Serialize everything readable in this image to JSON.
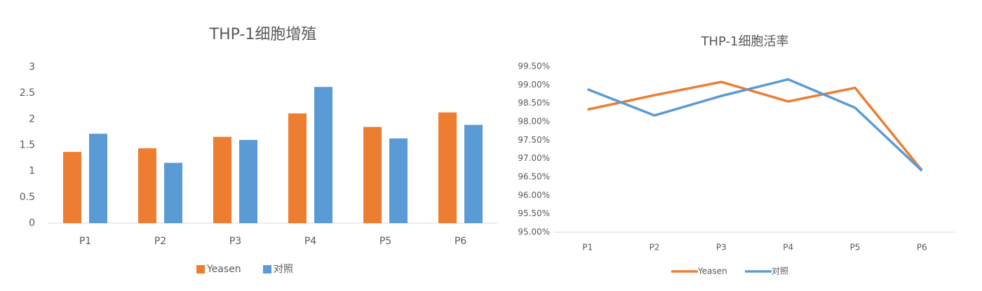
{
  "chart_data": [
    {
      "type": "bar",
      "title": "THP-1细胞增殖",
      "categories": [
        "P1",
        "P2",
        "P3",
        "P4",
        "P5",
        "P6"
      ],
      "series": [
        {
          "name": "Yeasen",
          "color": "#ed7d31",
          "values": [
            1.37,
            1.44,
            1.66,
            2.11,
            1.85,
            2.13
          ]
        },
        {
          "name": "对照",
          "color": "#5b9bd5",
          "values": [
            1.72,
            1.16,
            1.6,
            2.62,
            1.63,
            1.89
          ]
        }
      ],
      "ylim": [
        0,
        3
      ],
      "yticks": [
        0,
        0.5,
        1,
        1.5,
        2,
        2.5,
        3
      ]
    },
    {
      "type": "line",
      "title": "THP-1细胞活率",
      "categories": [
        "P1",
        "P2",
        "P3",
        "P4",
        "P5",
        "P6"
      ],
      "series": [
        {
          "name": "Yeasen",
          "color": "#ed7d31",
          "values": [
            98.33,
            98.72,
            99.08,
            98.55,
            98.92,
            96.68
          ]
        },
        {
          "name": "对照",
          "color": "#5b9bd5",
          "values": [
            98.88,
            98.17,
            98.7,
            99.15,
            98.38,
            96.67
          ]
        }
      ],
      "ylim": [
        95,
        99.5
      ],
      "yticks": [
        {
          "value": 95,
          "label": "95.00%"
        },
        {
          "value": 95.5,
          "label": "95.50%"
        },
        {
          "value": 96,
          "label": "96.00%"
        },
        {
          "value": 96.5,
          "label": "96.50%"
        },
        {
          "value": 97,
          "label": "97.00%"
        },
        {
          "value": 97.5,
          "label": "97.50%"
        },
        {
          "value": 98,
          "label": "98.00%"
        },
        {
          "value": 98.5,
          "label": "98.50%"
        },
        {
          "value": 99,
          "label": "99.00%"
        },
        {
          "value": 99.5,
          "label": "99.50%"
        }
      ]
    }
  ]
}
